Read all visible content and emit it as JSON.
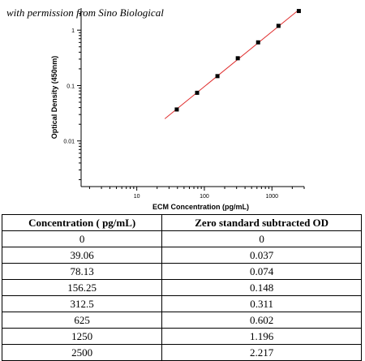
{
  "credit": "with permission from Sino Biological",
  "chart_data": {
    "type": "scatter",
    "xlabel": "ECM Concentration (pg/mL)",
    "ylabel": "Optical Density (450nm)",
    "x_scale": "log",
    "y_scale": "log",
    "xlim": [
      1.5,
      3000
    ],
    "ylim": [
      0.0015,
      2.5
    ],
    "x_ticks": [
      {
        "value": 10,
        "label": "10"
      },
      {
        "value": 100,
        "label": "100"
      },
      {
        "value": 1000,
        "label": "1000"
      }
    ],
    "y_ticks": [
      {
        "value": 0.01,
        "label": "0.01"
      },
      {
        "value": 0.1,
        "label": "0.1"
      },
      {
        "value": 1,
        "label": "1"
      }
    ],
    "points": [
      {
        "x": 39.06,
        "y": 0.037
      },
      {
        "x": 78.13,
        "y": 0.074
      },
      {
        "x": 156.25,
        "y": 0.148
      },
      {
        "x": 312.5,
        "y": 0.311
      },
      {
        "x": 625,
        "y": 0.602
      },
      {
        "x": 1250,
        "y": 1.196
      },
      {
        "x": 2500,
        "y": 2.217
      }
    ],
    "fit_line": {
      "x_start": 26,
      "x_end": 2500,
      "color": "#e03030"
    },
    "marker_color": "#000000",
    "grid": false
  },
  "table": {
    "headers": [
      "Concentration ( pg/mL)",
      "Zero standard subtracted OD"
    ],
    "rows": [
      [
        "0",
        "0"
      ],
      [
        "39.06",
        "0.037"
      ],
      [
        "78.13",
        "0.074"
      ],
      [
        "156.25",
        "0.148"
      ],
      [
        "312.5",
        "0.311"
      ],
      [
        "625",
        "0.602"
      ],
      [
        "1250",
        "1.196"
      ],
      [
        "2500",
        "2.217"
      ]
    ]
  }
}
